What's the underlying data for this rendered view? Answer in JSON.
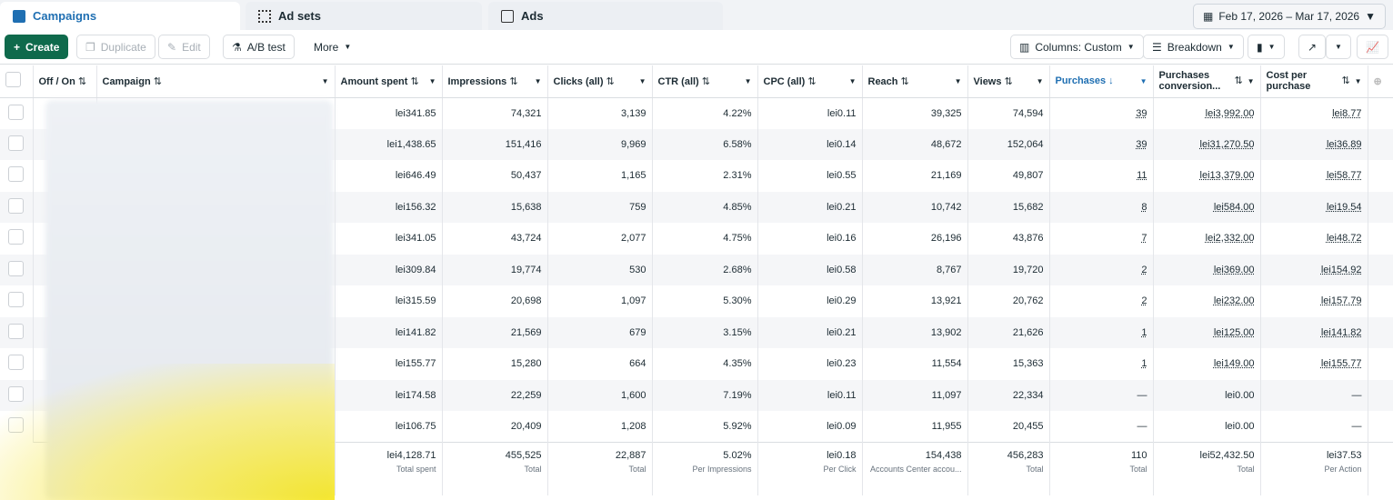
{
  "tabs": [
    {
      "label": "Campaigns",
      "icon": "campaign-icon",
      "active": true
    },
    {
      "label": "Ad sets",
      "icon": "grid-icon"
    },
    {
      "label": "Ads",
      "icon": "ad-icon"
    }
  ],
  "date_range": "Feb 17, 2026 – Mar 17, 2026",
  "toolbar": {
    "create": "Create",
    "duplicate": "Duplicate",
    "edit": "Edit",
    "ab_test": "A/B test",
    "more": "More",
    "columns": "Columns: Custom",
    "breakdown": "Breakdown"
  },
  "columns": [
    "Off / On",
    "Campaign",
    "Amount spent",
    "Impressions",
    "Clicks (all)",
    "CTR (all)",
    "CPC (all)",
    "Reach",
    "Views",
    "Purchases",
    "Purchases conversion...",
    "Cost per purchase"
  ],
  "rows": [
    [
      "lei341.85",
      "74,321",
      "3,139",
      "4.22%",
      "lei0.11",
      "39,325",
      "74,594",
      "39",
      "lei3,992.00",
      "lei8.77"
    ],
    [
      "lei1,438.65",
      "151,416",
      "9,969",
      "6.58%",
      "lei0.14",
      "48,672",
      "152,064",
      "39",
      "lei31,270.50",
      "lei36.89"
    ],
    [
      "lei646.49",
      "50,437",
      "1,165",
      "2.31%",
      "lei0.55",
      "21,169",
      "49,807",
      "11",
      "lei13,379.00",
      "lei58.77"
    ],
    [
      "lei156.32",
      "15,638",
      "759",
      "4.85%",
      "lei0.21",
      "10,742",
      "15,682",
      "8",
      "lei584.00",
      "lei19.54"
    ],
    [
      "lei341.05",
      "43,724",
      "2,077",
      "4.75%",
      "lei0.16",
      "26,196",
      "43,876",
      "7",
      "lei2,332.00",
      "lei48.72"
    ],
    [
      "lei309.84",
      "19,774",
      "530",
      "2.68%",
      "lei0.58",
      "8,767",
      "19,720",
      "2",
      "lei369.00",
      "lei154.92"
    ],
    [
      "lei315.59",
      "20,698",
      "1,097",
      "5.30%",
      "lei0.29",
      "13,921",
      "20,762",
      "2",
      "lei232.00",
      "lei157.79"
    ],
    [
      "lei141.82",
      "21,569",
      "679",
      "3.15%",
      "lei0.21",
      "13,902",
      "21,626",
      "1",
      "lei125.00",
      "lei141.82"
    ],
    [
      "lei155.77",
      "15,280",
      "664",
      "4.35%",
      "lei0.23",
      "11,554",
      "15,363",
      "1",
      "lei149.00",
      "lei155.77"
    ],
    [
      "lei174.58",
      "22,259",
      "1,600",
      "7.19%",
      "lei0.11",
      "11,097",
      "22,334",
      "—",
      "lei0.00",
      "—"
    ],
    [
      "lei106.75",
      "20,409",
      "1,208",
      "5.92%",
      "lei0.09",
      "11,955",
      "20,455",
      "—",
      "lei0.00",
      "—"
    ]
  ],
  "totals": [
    {
      "value": "lei4,128.71",
      "label": "Total spent"
    },
    {
      "value": "455,525",
      "label": "Total"
    },
    {
      "value": "22,887",
      "label": "Total"
    },
    {
      "value": "5.02%",
      "label": "Per Impressions"
    },
    {
      "value": "lei0.18",
      "label": "Per Click"
    },
    {
      "value": "154,438",
      "label": "Accounts Center accou..."
    },
    {
      "value": "456,283",
      "label": "Total"
    },
    {
      "value": "110",
      "label": "Total"
    },
    {
      "value": "lei52,432.50",
      "label": "Total"
    },
    {
      "value": "lei37.53",
      "label": "Per Action"
    }
  ],
  "colors": {
    "accent": "#1f6fb2",
    "create": "#0f6a4c"
  }
}
